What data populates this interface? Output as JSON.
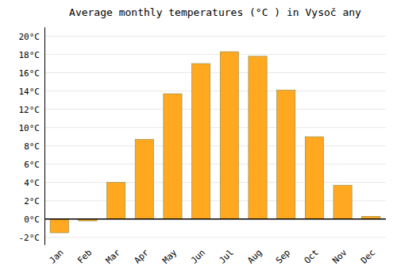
{
  "chart_data": {
    "type": "bar",
    "title": "Average monthly temperatures (°C ) in Vysoč any",
    "categories": [
      "Jan",
      "Feb",
      "Mar",
      "Apr",
      "May",
      "Jun",
      "Jul",
      "Aug",
      "Sep",
      "Oct",
      "Nov",
      "Dec"
    ],
    "values": [
      -1.5,
      -0.2,
      4.0,
      8.7,
      13.7,
      17.0,
      18.3,
      17.8,
      14.1,
      9.0,
      3.7,
      0.3
    ],
    "color": "#FFA820",
    "ylim": [
      -2.8,
      21.0
    ],
    "yticks": [
      {
        "value": -2,
        "label": "-2°C"
      },
      {
        "value": 0,
        "label": "0°C"
      },
      {
        "value": 2,
        "label": "2°C"
      },
      {
        "value": 4,
        "label": "4°C"
      },
      {
        "value": 6,
        "label": "6°C"
      },
      {
        "value": 8,
        "label": "8°C"
      },
      {
        "value": 10,
        "label": "10°C"
      },
      {
        "value": 12,
        "label": "12°C"
      },
      {
        "value": 14,
        "label": "14°C"
      },
      {
        "value": 16,
        "label": "16°C"
      },
      {
        "value": 18,
        "label": "18°C"
      },
      {
        "value": 20,
        "label": "20°C"
      }
    ],
    "grid": true
  }
}
